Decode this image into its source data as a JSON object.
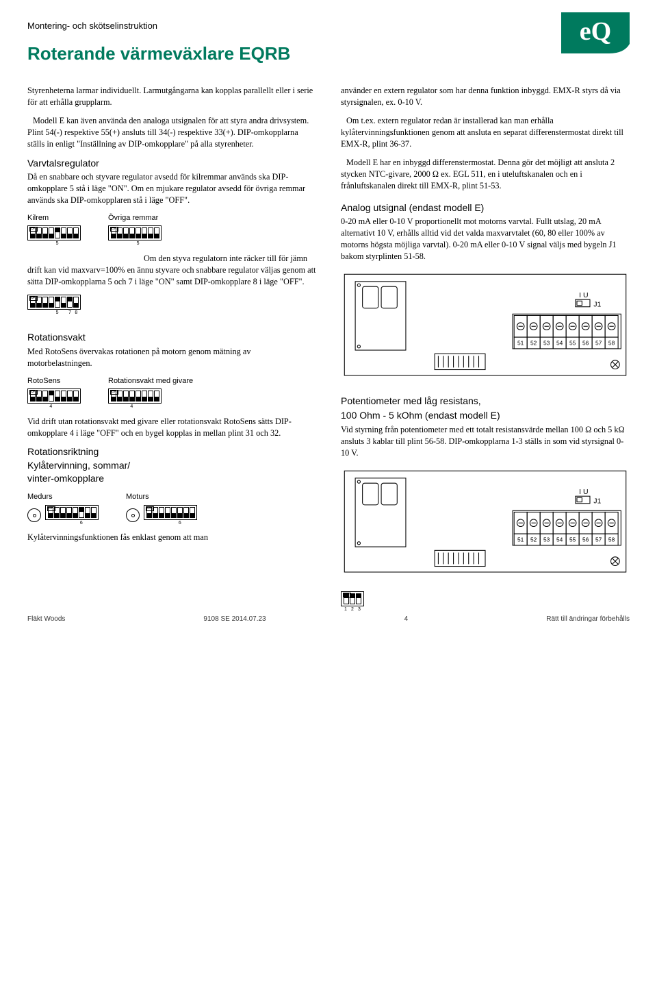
{
  "colors": {
    "brand_green": "#007a5e",
    "text": "#000000",
    "bg": "#ffffff"
  },
  "header": {
    "topline": "Montering- och skötselinstruktion",
    "logo_text": "eQ",
    "title": "Roterande värmeväxlare EQRB"
  },
  "left": {
    "para1": "Styrenheterna larmar individuellt. Larmutgångarna kan kopplas parallellt eller i serie för att erhålla grupplarm.",
    "para2": "Modell E kan även använda den analoga utsignalen för att styra andra drivsystem. Plint 54(-) respektive 55(+) ansluts till 34(-) respektive 33(+). DIP-omkopplarna ställs in enligt \"Inställning av DIP-omkopplare\" på alla styrenheter.",
    "varvtal_head": "Varvtalsregulator",
    "varvtal_p1": "Då en snabbare och styvare regulator avsedd för kilremmar används ska DIP-omkopplare 5 stå i läge \"ON\". Om en mjukare regulator avsedd för övriga remmar används ska DIP-omkopplaren stå i läge \"OFF\".",
    "kilrem_label": "Kilrem",
    "ovriga_label": "Övriga remmar",
    "varvtal_p2": "Om den styva regulatorn inte räcker till för jämn drift kan vid maxvarv=100% en ännu styvare och snabbare regulator väljas genom att sätta DIP-omkopplarna 5 och 7 i läge \"ON\" samt DIP-omkopplare 8 i läge \"OFF\".",
    "rotvakt_head": "Rotationsvakt",
    "rotvakt_p1": "Med RotoSens övervakas rotationen på motorn genom mätning av motorbelastningen.",
    "rotosens_label": "RotoSens",
    "rotvakt_givare_label": "Rotationsvakt med givare",
    "rotvakt_p2": "Vid drift utan rotationsvakt med givare eller rotationsvakt RotoSens sätts DIP-omkopplare 4 i läge \"OFF\" och en bygel kopplas in mellan plint 31 och 32.",
    "rotriktning_head": "Rotationsriktning\nKylåtervinning, sommar/\nvinter-omkopplare",
    "medurs_label": "Medurs",
    "moturs_label": "Moturs",
    "kyl_p": "Kylåtervinningsfunktionen fås enklast genom att man"
  },
  "right": {
    "para1": "använder en extern regulator som har denna funktion inbyggd. EMX-R styrs då via styrsignalen, ex. 0-10 V.",
    "para2": "Om t.ex. extern regulator redan är installerad kan man erhålla kylåtervinningsfunktionen genom att ansluta en separat differenstermostat direkt till EMX-R, plint 36-37.",
    "para3": "Modell E har en inbyggd differenstermostat. Denna gör det möjligt att ansluta 2 stycken NTC-givare, 2000 Ω ex. EGL 511, en i uteluftskanalen och en i frånluftskanalen direkt till EMX-R, plint 51-53.",
    "analog_head": "Analog utsignal (endast modell E)",
    "analog_p": "0-20 mA eller 0-10 V proportionellt mot motorns varvtal. Fullt utslag, 20 mA alternativt 10 V, erhålls alltid vid det valda maxvarvtalet (60, 80 eller 100% av motorns högsta möjliga varvtal). 0-20 mA eller 0-10 V signal väljs med bygeln J1 bakom styrplinten 51-58.",
    "pot_head1": "Potentiometer med låg resistans,",
    "pot_head2": "100 Ohm - 5 kOhm (endast modell E)",
    "pot_p": "Vid styrning från potentiometer med ett totalt resistansvärde mellan 100 Ω och 5 kΩ ansluts 3 kablar till plint 56-58. DIP-omkopplarna 1-3 ställs in som vid styrsignal 0-10 V.",
    "terminal_labels": [
      "51",
      "52",
      "53",
      "54",
      "55",
      "56",
      "57",
      "58"
    ],
    "j1_label": "J1",
    "iu_label": "I  U",
    "dip123_labels": [
      "1",
      "2",
      "3"
    ]
  },
  "dip": {
    "kilrem": {
      "slots": [
        0,
        0,
        0,
        0,
        1,
        0,
        0,
        0
      ],
      "under": [
        "",
        "",
        "",
        "",
        "5",
        "",
        "",
        ""
      ]
    },
    "ovriga": {
      "slots": [
        0,
        0,
        0,
        0,
        0,
        0,
        0,
        0
      ],
      "under": [
        "",
        "",
        "",
        "",
        "5",
        "",
        "",
        ""
      ]
    },
    "extra578": {
      "slots": [
        0,
        0,
        0,
        0,
        1,
        0,
        1,
        0
      ],
      "under": [
        "",
        "",
        "",
        "",
        "5",
        "",
        "7",
        "8"
      ]
    },
    "rotosens": {
      "slots": [
        0,
        0,
        0,
        1,
        0,
        0,
        0,
        0
      ],
      "under": [
        "",
        "",
        "",
        "4",
        "",
        "",
        "",
        ""
      ]
    },
    "rotgivare": {
      "slots": [
        0,
        0,
        0,
        0,
        0,
        0,
        0,
        0
      ],
      "under": [
        "",
        "",
        "",
        "4",
        "",
        "",
        "",
        ""
      ]
    },
    "medurs": {
      "slots": [
        0,
        0,
        0,
        0,
        0,
        1,
        0,
        0
      ],
      "under": [
        "",
        "",
        "",
        "",
        "",
        "6",
        "",
        ""
      ]
    },
    "moturs": {
      "slots": [
        0,
        0,
        0,
        0,
        0,
        0,
        0,
        0
      ],
      "under": [
        "",
        "",
        "",
        "",
        "",
        "6",
        "",
        ""
      ]
    },
    "dip123": {
      "slots": [
        1,
        1,
        1
      ],
      "under": [
        "1",
        "2",
        "3"
      ]
    }
  },
  "footer": {
    "left": "Fläkt Woods",
    "center": "9108 SE 2014.07.23",
    "page": "4",
    "right": "Rätt till ändringar förbehålls"
  }
}
